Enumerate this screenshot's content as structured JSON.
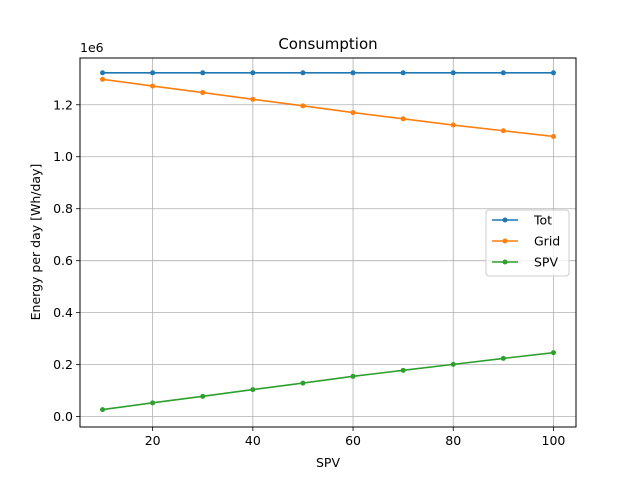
{
  "chart_data": {
    "type": "line",
    "title": "Consumption",
    "xlabel": "SPV",
    "ylabel": "Energy per day [Wh/day]",
    "offset_label": "1e6",
    "x": [
      10,
      20,
      30,
      40,
      50,
      60,
      70,
      80,
      90,
      100
    ],
    "xlim": [
      5.5,
      104.5
    ],
    "ylim": [
      -0.04,
      1.38
    ],
    "xticks": [
      20,
      40,
      60,
      80,
      100
    ],
    "yticks": [
      0.0,
      0.2,
      0.4,
      0.6,
      0.8,
      1.0,
      1.2
    ],
    "ytick_labels": [
      "0.0",
      "0.2",
      "0.4",
      "0.6",
      "0.8",
      "1.0",
      "1.2"
    ],
    "grid": true,
    "legend_position": "center-right",
    "series": [
      {
        "name": "Tot",
        "color": "#1f77b4",
        "values": [
          1.323,
          1.323,
          1.323,
          1.323,
          1.323,
          1.323,
          1.323,
          1.323,
          1.323,
          1.323
        ]
      },
      {
        "name": "Grid",
        "color": "#ff7f0e",
        "values": [
          1.298,
          1.272,
          1.247,
          1.221,
          1.196,
          1.17,
          1.146,
          1.122,
          1.1,
          1.078
        ]
      },
      {
        "name": "SPV",
        "color": "#2ca02c",
        "values": [
          0.027,
          0.053,
          0.078,
          0.104,
          0.129,
          0.155,
          0.178,
          0.201,
          0.224,
          0.246
        ]
      }
    ]
  }
}
